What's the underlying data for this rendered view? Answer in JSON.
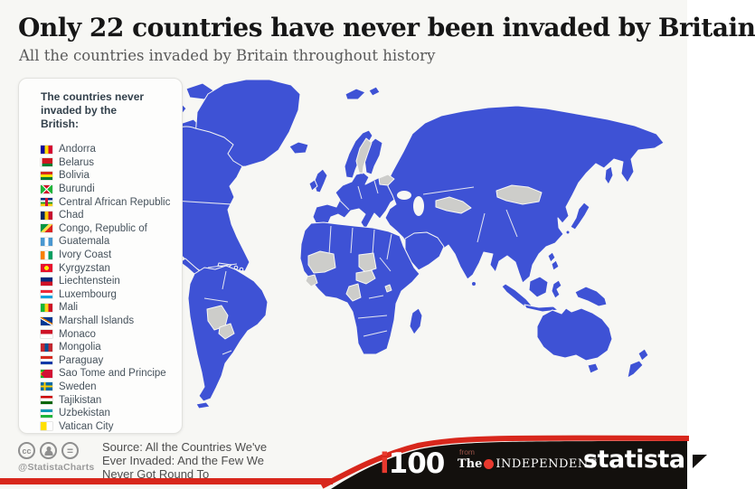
{
  "header": {
    "title": "Only 22 countries have never been invaded by Britain",
    "subtitle": "All the countries invaded by Britain throughout history"
  },
  "legend": {
    "heading": "The countries never invaded by the British:",
    "countries": [
      {
        "name": "Andorra",
        "flag": "andorra"
      },
      {
        "name": "Belarus",
        "flag": "belarus"
      },
      {
        "name": "Bolivia",
        "flag": "bolivia"
      },
      {
        "name": "Burundi",
        "flag": "burundi"
      },
      {
        "name": "Central African Republic",
        "flag": "car"
      },
      {
        "name": "Chad",
        "flag": "chad"
      },
      {
        "name": "Congo, Republic of",
        "flag": "congo"
      },
      {
        "name": "Guatemala",
        "flag": "guatemala"
      },
      {
        "name": "Ivory Coast",
        "flag": "ivory-coast"
      },
      {
        "name": "Kyrgyzstan",
        "flag": "kyrgyzstan"
      },
      {
        "name": "Liechtenstein",
        "flag": "liechtenstein"
      },
      {
        "name": "Luxembourg",
        "flag": "luxembourg"
      },
      {
        "name": "Mali",
        "flag": "mali"
      },
      {
        "name": "Marshall Islands",
        "flag": "marshall-islands"
      },
      {
        "name": "Monaco",
        "flag": "monaco"
      },
      {
        "name": "Mongolia",
        "flag": "mongolia"
      },
      {
        "name": "Paraguay",
        "flag": "paraguay"
      },
      {
        "name": "Sao Tome and Principe",
        "flag": "sao-tome"
      },
      {
        "name": "Sweden",
        "flag": "sweden"
      },
      {
        "name": "Tajikistan",
        "flag": "tajikistan"
      },
      {
        "name": "Uzbekistan",
        "flag": "uzbekistan"
      },
      {
        "name": "Vatican City",
        "flag": "vatican"
      }
    ]
  },
  "map": {
    "type": "choropleth-world-map",
    "invaded_meaning": "Countries invaded by Britain (blue)",
    "never_invaded_meaning": "Countries never invaded by Britain (gray)",
    "never_invaded_regions_shown_gray": [
      "Sweden",
      "Belarus",
      "Mongolia",
      "Central Asia (Uzbekistan/Tajikistan)",
      "Mali",
      "Ivory Coast",
      "Chad",
      "Central African Republic",
      "Congo",
      "Burundi",
      "Bolivia",
      "Paraguay"
    ]
  },
  "footer": {
    "handle": "@StatistaCharts",
    "cc_icons": [
      "cc",
      "attribution-person",
      "equals"
    ],
    "source_lines": [
      "Source: All the Countries We've",
      "Ever Invaded: And the Few We",
      "Never Got Round To"
    ],
    "logos": {
      "i100_i": "i",
      "i100_num": "100",
      "independent_from": "from",
      "independent_the": "The",
      "independent_name": "INDEPENDENT",
      "statista": "statista"
    }
  },
  "colors": {
    "invaded_blue": "#3E52D5",
    "never_gray": "#CDCDCA",
    "background": "#F7F7F4",
    "ribbon_red": "#D8271C",
    "band_black": "#13100D",
    "i100_red": "#E8392E",
    "independent_red": "#E8392E"
  }
}
